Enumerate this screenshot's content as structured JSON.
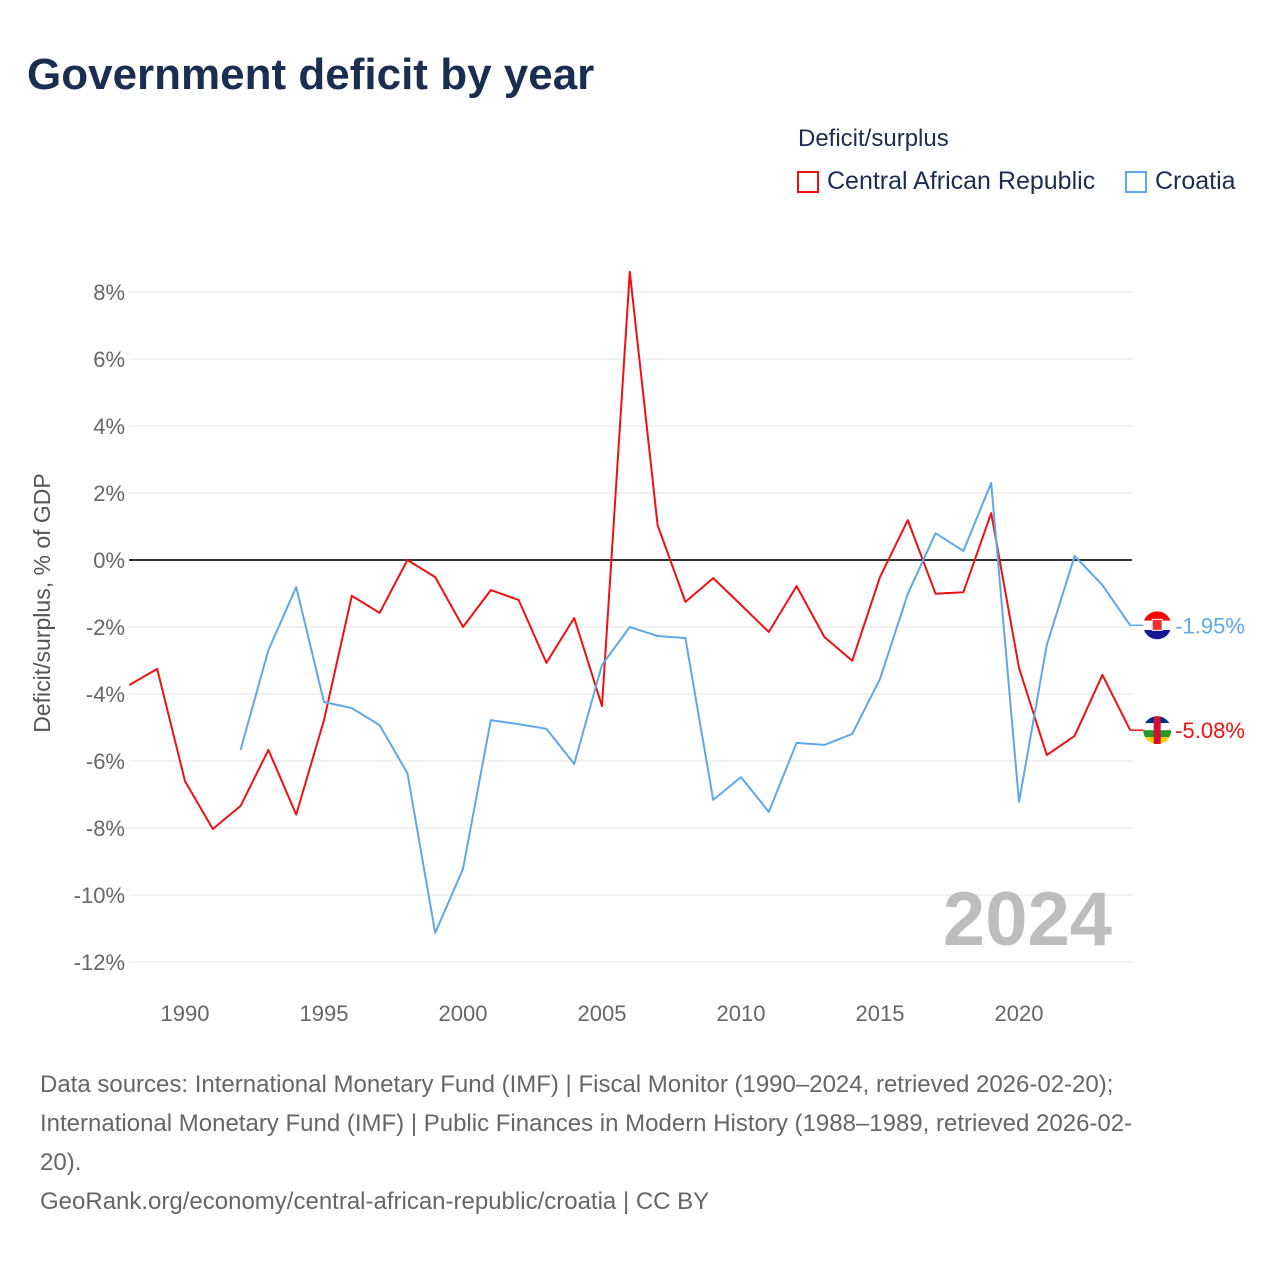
{
  "title": "Government deficit by year",
  "legend": {
    "title": "Deficit/surplus",
    "items": [
      {
        "label": "Central African Republic",
        "color": "#ee1111"
      },
      {
        "label": "Croatia",
        "color": "#5fa8e8"
      }
    ]
  },
  "chart_data": {
    "type": "line",
    "ylabel": "Deficit/surplus, % of GDP",
    "xlabel": "",
    "xlim": [
      1988,
      2024
    ],
    "ylim": [
      -13,
      8.5
    ],
    "x_ticks": [
      1990,
      1995,
      2000,
      2005,
      2010,
      2015,
      2020
    ],
    "x_tick_labels": [
      "1990",
      "1995",
      "2000",
      "2005",
      "2010",
      "2015",
      "2020"
    ],
    "y_ticks": [
      8,
      6,
      4,
      2,
      0,
      -2,
      -4,
      -6,
      -8,
      -10,
      -12
    ],
    "y_tick_labels": [
      "8%",
      "6%",
      "4%",
      "2%",
      "0%",
      "-2%",
      "-4%",
      "-6%",
      "-8%",
      "-10%",
      "-12%"
    ],
    "grid": true,
    "watermark": "2024",
    "series": [
      {
        "name": "Central African Republic",
        "color": "#ee1111",
        "end_label": "-5.08%",
        "x": [
          1988,
          1989,
          1990,
          1991,
          1992,
          1993,
          1994,
          1995,
          1996,
          1997,
          1998,
          1999,
          2000,
          2001,
          2002,
          2003,
          2004,
          2005,
          2006,
          2007,
          2008,
          2009,
          2010,
          2011,
          2012,
          2013,
          2014,
          2015,
          2016,
          2017,
          2018,
          2019,
          2020,
          2021,
          2022,
          2023,
          2024
        ],
        "values": [
          -3.73,
          -3.25,
          -6.6,
          -8.03,
          -7.34,
          -5.67,
          -7.6,
          -4.78,
          -1.07,
          -1.58,
          0.0,
          -0.51,
          -2.0,
          -0.9,
          -1.19,
          -3.07,
          -1.73,
          -4.36,
          8.6,
          1.04,
          -1.25,
          -0.54,
          -1.34,
          -2.15,
          -0.78,
          -2.3,
          -3.01,
          -0.51,
          1.19,
          -1.01,
          -0.96,
          1.4,
          -3.22,
          -5.82,
          -5.25,
          -3.43,
          -5.08
        ]
      },
      {
        "name": "Croatia",
        "color": "#5fa8e8",
        "end_label": "-1.95%",
        "x": [
          1992,
          1993,
          1994,
          1995,
          1996,
          1997,
          1998,
          1999,
          2000,
          2001,
          2002,
          2003,
          2004,
          2005,
          2006,
          2007,
          2008,
          2009,
          2010,
          2011,
          2012,
          2013,
          2014,
          2015,
          2016,
          2017,
          2018,
          2019,
          2020,
          2021,
          2022,
          2023,
          2024
        ],
        "values": [
          -5.67,
          -2.69,
          -0.81,
          -4.24,
          -4.42,
          -4.93,
          -6.36,
          -11.13,
          -9.22,
          -4.78,
          -4.9,
          -5.04,
          -6.09,
          -3.13,
          -2.0,
          -2.27,
          -2.33,
          -7.16,
          -6.48,
          -7.52,
          -5.46,
          -5.52,
          -5.19,
          -3.55,
          -1.01,
          0.8,
          0.27,
          2.3,
          -7.22,
          -2.54,
          0.12,
          -0.75,
          -1.95
        ]
      }
    ]
  },
  "sources": {
    "line1": "Data sources: International Monetary Fund (IMF) | Fiscal Monitor (1990–2024, retrieved 2026-02-20);",
    "line2": "International Monetary Fund (IMF) | Public Finances in Modern History (1988–1989, retrieved 2026-02-",
    "line3": "20).",
    "line4": "GeoRank.org/economy/central-african-republic/croatia | CC BY"
  }
}
